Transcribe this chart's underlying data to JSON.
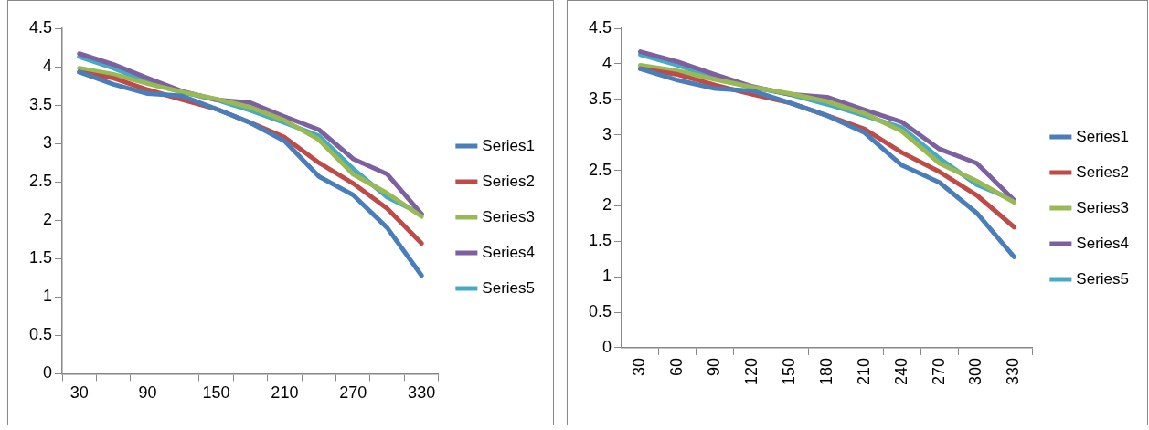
{
  "chart_data": [
    {
      "type": "line",
      "categories": [
        "30",
        null,
        "90",
        null,
        "150",
        null,
        "210",
        null,
        "270",
        null,
        "330"
      ],
      "ylim": [
        0,
        4.5
      ],
      "yticks": [
        0,
        0.5,
        1,
        1.5,
        2,
        2.5,
        3,
        3.5,
        4,
        4.5
      ],
      "grid": false,
      "legend": "right",
      "marker": "none",
      "line_style": "solid",
      "series": [
        {
          "name": "Series1",
          "color": "#4a7ebb",
          "values": [
            3.93,
            3.77,
            3.65,
            3.62,
            3.45,
            3.27,
            3.03,
            2.57,
            2.33,
            1.9,
            1.28
          ]
        },
        {
          "name": "Series2",
          "color": "#be4b48",
          "values": [
            3.93,
            3.85,
            3.7,
            3.57,
            3.45,
            3.27,
            3.08,
            2.75,
            2.48,
            2.15,
            1.7
          ]
        },
        {
          "name": "Series3",
          "color": "#98b954",
          "values": [
            3.98,
            3.9,
            3.78,
            3.67,
            3.58,
            3.47,
            3.3,
            3.05,
            2.6,
            2.35,
            2.05
          ]
        },
        {
          "name": "Series4",
          "color": "#7d60a0",
          "values": [
            4.17,
            4.03,
            3.85,
            3.68,
            3.57,
            3.53,
            3.35,
            3.18,
            2.8,
            2.6,
            2.08
          ]
        },
        {
          "name": "Series5",
          "color": "#46aac5",
          "values": [
            4.13,
            3.98,
            3.8,
            3.67,
            3.57,
            3.43,
            3.27,
            3.1,
            2.67,
            2.3,
            2.08
          ]
        }
      ]
    },
    {
      "type": "line",
      "categories": [
        "30",
        "60",
        "90",
        "120",
        "150",
        "180",
        "210",
        "240",
        "270",
        "300",
        "330"
      ],
      "ylim": [
        0,
        4.5
      ],
      "yticks": [
        0,
        0.5,
        1,
        1.5,
        2,
        2.5,
        3,
        3.5,
        4,
        4.5
      ],
      "grid": false,
      "legend": "right",
      "marker": "none",
      "line_style": "solid",
      "series": [
        {
          "name": "Series1",
          "color": "#4a7ebb",
          "values": [
            3.93,
            3.77,
            3.65,
            3.62,
            3.45,
            3.27,
            3.03,
            2.57,
            2.33,
            1.9,
            1.28
          ]
        },
        {
          "name": "Series2",
          "color": "#be4b48",
          "values": [
            3.93,
            3.85,
            3.7,
            3.57,
            3.45,
            3.27,
            3.08,
            2.75,
            2.48,
            2.15,
            1.7
          ]
        },
        {
          "name": "Series3",
          "color": "#98b954",
          "values": [
            3.98,
            3.9,
            3.78,
            3.67,
            3.58,
            3.47,
            3.3,
            3.05,
            2.6,
            2.35,
            2.05
          ]
        },
        {
          "name": "Series4",
          "color": "#7d60a0",
          "values": [
            4.17,
            4.03,
            3.85,
            3.68,
            3.57,
            3.53,
            3.35,
            3.18,
            2.8,
            2.6,
            2.08
          ]
        },
        {
          "name": "Series5",
          "color": "#46aac5",
          "values": [
            4.13,
            3.98,
            3.8,
            3.67,
            3.57,
            3.43,
            3.27,
            3.1,
            2.67,
            2.3,
            2.08
          ]
        }
      ]
    }
  ]
}
